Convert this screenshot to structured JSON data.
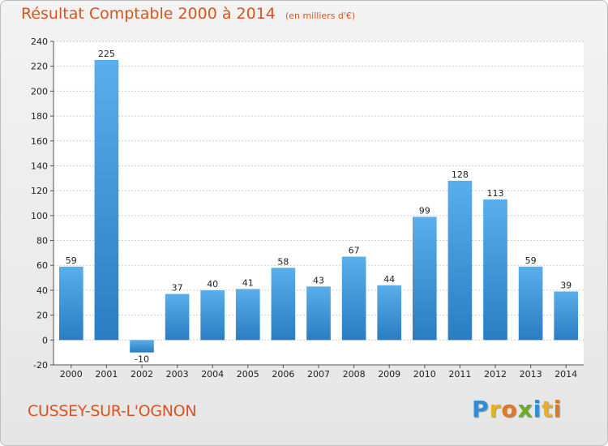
{
  "chart_data": {
    "type": "bar",
    "title": "Résultat Comptable 2000 à 2014",
    "subtitle": "(en milliers d'€)",
    "categories": [
      "2000",
      "2001",
      "2002",
      "2003",
      "2004",
      "2005",
      "2006",
      "2007",
      "2008",
      "2009",
      "2010",
      "2011",
      "2012",
      "2013",
      "2014"
    ],
    "values": [
      59,
      225,
      -10,
      37,
      40,
      41,
      58,
      43,
      67,
      44,
      99,
      128,
      113,
      59,
      39
    ],
    "ylim": [
      -20,
      240
    ],
    "yticks": [
      -20,
      0,
      20,
      40,
      60,
      80,
      100,
      120,
      140,
      160,
      180,
      200,
      220,
      240
    ],
    "xlabel": "",
    "ylabel": "",
    "grid": true,
    "bar_color_top": "#5aaeea",
    "bar_color_bottom": "#2a7dc2"
  },
  "footer": {
    "town": "CUSSEY-SUR-L'OGNON",
    "logo_letters": [
      "P",
      "r",
      "o",
      "x",
      "i",
      "t",
      "i"
    ],
    "logo_colors": [
      "#2e8fd6",
      "#e8b21c",
      "#e07a1c",
      "#6aae27",
      "#2e8fd6",
      "#e8b21c",
      "#e07a1c"
    ]
  }
}
